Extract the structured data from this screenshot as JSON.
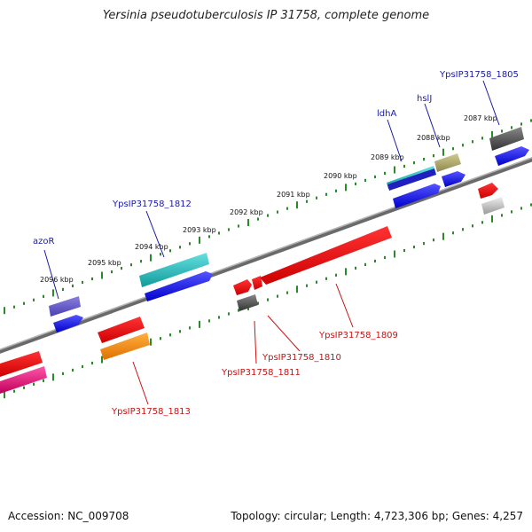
{
  "title": "Yersinia pseudotuberculosis IP 31758, complete genome",
  "footer": {
    "accession": "Accession: NC_009708",
    "summary": "Topology: circular; Length: 4,723,306 bp; Genes: 4,257"
  },
  "ticks": [
    {
      "label": "2096 kbp"
    },
    {
      "label": "2095 kbp"
    },
    {
      "label": "2094 kbp"
    },
    {
      "label": "2093 kbp"
    },
    {
      "label": "2092 kbp"
    },
    {
      "label": "2091 kbp"
    },
    {
      "label": "2090 kbp"
    },
    {
      "label": "2089 kbp"
    },
    {
      "label": "2088 kbp"
    },
    {
      "label": "2087 kbp"
    }
  ],
  "gene_labels": [
    {
      "text": "azoR",
      "color": "#1a1aa8"
    },
    {
      "text": "YpsIP31758_1812",
      "color": "#1a1aa8"
    },
    {
      "text": "ldhA",
      "color": "#1a1aa8"
    },
    {
      "text": "hslJ",
      "color": "#1a1aa8"
    },
    {
      "text": "YpsIP31758_1805",
      "color": "#1a1aa8"
    },
    {
      "text": "YpsIP31758_1809",
      "color": "#cc1111"
    },
    {
      "text": "YpsIP31758_1810",
      "color": "#cc1111"
    },
    {
      "text": "YpsIP31758_1811",
      "color": "#cc1111"
    },
    {
      "text": "YpsIP31758_1813",
      "color": "#cc1111"
    }
  ],
  "colors": {
    "backbone": "#8a8a8a",
    "tick_track": "#2a8a2a",
    "blue_cds": "#0a0ae6",
    "red_cds": "#e60a0a",
    "cyan_cds": "#22cccc",
    "purple_cds": "#6a5acd",
    "olive_cds": "#b0aa6a",
    "gray_cds": "#555555",
    "orange_cds": "#ff8c00",
    "magenta_cds": "#e0107a"
  }
}
